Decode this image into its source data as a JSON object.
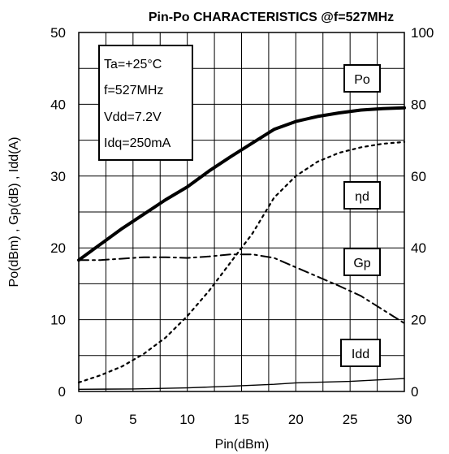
{
  "chart_data": {
    "type": "line",
    "title": "Pin-Po CHARACTERISTICS @f=527MHz",
    "xlabel": "Pin(dBm)",
    "ylabel": "Po(dBm) , Gp(dB) , Idd(A)",
    "xlim": [
      0,
      30
    ],
    "ylim": [
      0,
      50
    ],
    "y2lim": [
      0,
      100
    ],
    "xticks": [
      "0",
      "5",
      "10",
      "15",
      "20",
      "25",
      "30"
    ],
    "yticks": [
      "0",
      "10",
      "20",
      "30",
      "40",
      "50"
    ],
    "y2ticks": [
      "0",
      "20",
      "40",
      "60",
      "80",
      "100"
    ],
    "grid": true,
    "conditions": [
      "Ta=+25°C",
      "f=527MHz",
      "Vdd=7.2V",
      "Idq=250mA"
    ],
    "series": [
      {
        "name": "Po",
        "axis": "left",
        "style": "solid-thick",
        "x": [
          0,
          2,
          4,
          6,
          8,
          10,
          12,
          14,
          16,
          18,
          20,
          22,
          24,
          26,
          28,
          30
        ],
        "y": [
          18.3,
          20.5,
          22.7,
          24.7,
          26.7,
          28.5,
          30.7,
          32.7,
          34.6,
          36.5,
          37.6,
          38.3,
          38.8,
          39.2,
          39.4,
          39.5
        ]
      },
      {
        "name": "ηd",
        "axis": "right",
        "style": "dotted",
        "x": [
          0,
          2,
          4,
          6,
          8,
          10,
          12,
          14,
          16,
          18,
          20,
          22,
          24,
          26,
          28,
          30
        ],
        "y": [
          2.5,
          4.5,
          7,
          10.5,
          15,
          21,
          28,
          36,
          44,
          54,
          60,
          64,
          66.5,
          68,
          69,
          69.5
        ]
      },
      {
        "name": "Gp",
        "axis": "left",
        "style": "dash-dot",
        "x": [
          0,
          2,
          4,
          6,
          8,
          10,
          12,
          14,
          16,
          18,
          20,
          22,
          24,
          26,
          28,
          30
        ],
        "y": [
          18.3,
          18.3,
          18.5,
          18.7,
          18.7,
          18.6,
          18.8,
          19.1,
          19.1,
          18.6,
          17.3,
          16,
          14.7,
          13.3,
          11.4,
          9.5
        ]
      },
      {
        "name": "Idd",
        "axis": "left",
        "style": "solid-thin",
        "x": [
          0,
          5,
          10,
          15,
          18,
          20,
          25,
          30
        ],
        "y": [
          0.3,
          0.35,
          0.5,
          0.8,
          1.0,
          1.2,
          1.4,
          1.8
        ]
      }
    ]
  }
}
